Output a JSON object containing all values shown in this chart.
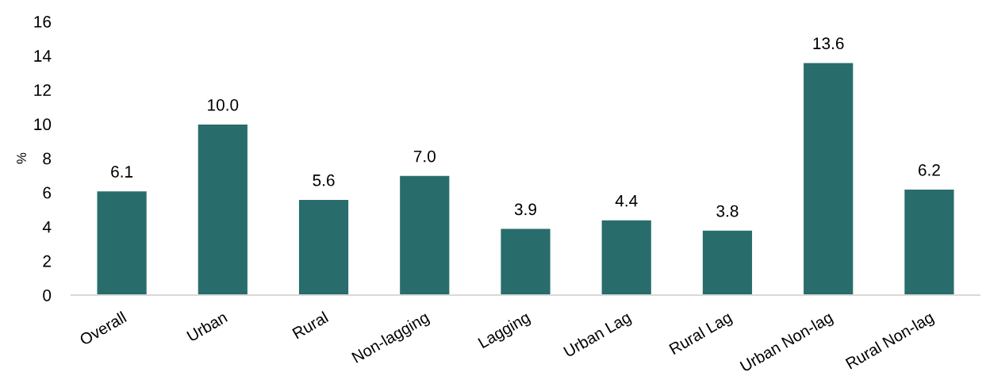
{
  "chart_data": {
    "type": "bar",
    "ylabel": "%",
    "categories": [
      "Overall",
      "Urban",
      "Rural",
      "Non-lagging",
      "Lagging",
      "Urban Lag",
      "Rural Lag",
      "Urban Non-lag",
      "Rural Non-lag"
    ],
    "values": [
      6.1,
      10.0,
      5.6,
      7.0,
      3.9,
      4.4,
      3.8,
      13.6,
      6.2
    ],
    "value_labels": [
      "6.1",
      "10.0",
      "5.6",
      "7.0",
      "3.9",
      "4.4",
      "3.8",
      "13.6",
      "6.2"
    ],
    "color": "#286d6c",
    "ylim": [
      0,
      16
    ],
    "yticks": [
      0,
      2,
      4,
      6,
      8,
      10,
      12,
      14,
      16
    ]
  }
}
